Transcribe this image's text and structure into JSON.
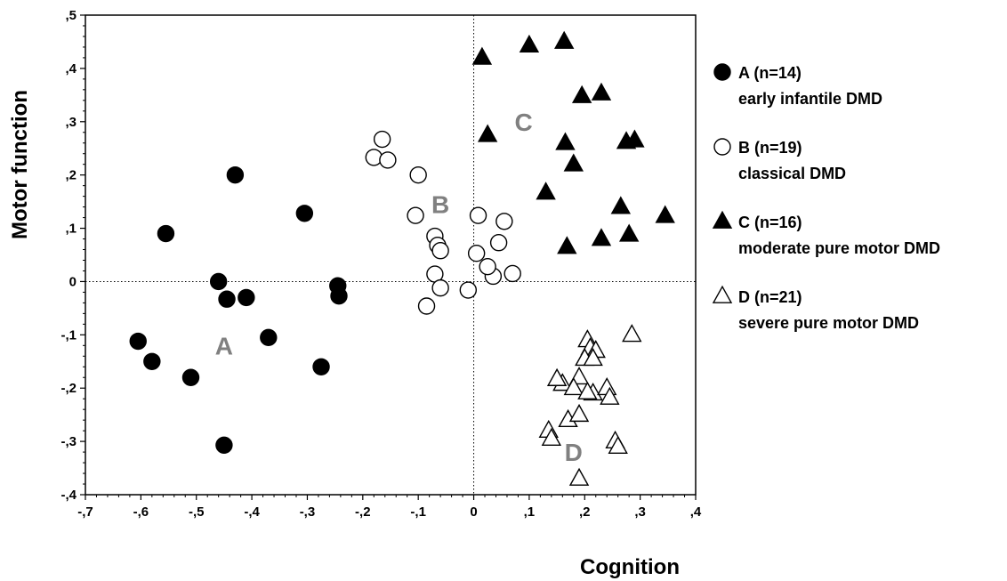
{
  "chart_data": {
    "type": "scatter",
    "title": "",
    "xlabel": "Cognition",
    "ylabel": "Motor function",
    "xlim": [
      -0.7,
      0.4
    ],
    "ylim": [
      -0.4,
      0.5
    ],
    "x_ticks": [
      {
        "value": -0.7,
        "label": "-,7"
      },
      {
        "value": -0.6,
        "label": "-,6"
      },
      {
        "value": -0.5,
        "label": "-,5"
      },
      {
        "value": -0.4,
        "label": "-,4"
      },
      {
        "value": -0.3,
        "label": "-,3"
      },
      {
        "value": -0.2,
        "label": "-,2"
      },
      {
        "value": -0.1,
        "label": "-,1"
      },
      {
        "value": 0.0,
        "label": "0"
      },
      {
        "value": 0.1,
        "label": ",1"
      },
      {
        "value": 0.2,
        "label": ",2"
      },
      {
        "value": 0.3,
        "label": ",3"
      },
      {
        "value": 0.4,
        "label": ",4"
      }
    ],
    "y_ticks": [
      {
        "value": 0.5,
        "label": ",5"
      },
      {
        "value": 0.4,
        "label": ",4"
      },
      {
        "value": 0.3,
        "label": ",3"
      },
      {
        "value": 0.2,
        "label": ",2"
      },
      {
        "value": 0.1,
        "label": ",1"
      },
      {
        "value": 0.0,
        "label": "0"
      },
      {
        "value": -0.1,
        "label": "-,1"
      },
      {
        "value": -0.2,
        "label": "-,2"
      },
      {
        "value": -0.3,
        "label": "-,3"
      },
      {
        "value": -0.4,
        "label": "-,4"
      }
    ],
    "reference_lines": {
      "x": 0,
      "y": 0,
      "style": "dotted"
    },
    "grid": false,
    "legend_position": "right",
    "series": [
      {
        "name": "A (n=14)",
        "description": "early infantile DMD",
        "marker": "filled-circle",
        "cluster_label": "A",
        "cluster_label_pos": [
          -0.45,
          -0.12
        ],
        "points": [
          [
            -0.43,
            0.2
          ],
          [
            -0.555,
            0.09
          ],
          [
            -0.305,
            0.128
          ],
          [
            -0.46,
            0.0
          ],
          [
            -0.445,
            -0.033
          ],
          [
            -0.41,
            -0.03
          ],
          [
            -0.245,
            -0.008
          ],
          [
            -0.243,
            -0.027
          ],
          [
            -0.605,
            -0.112
          ],
          [
            -0.58,
            -0.15
          ],
          [
            -0.37,
            -0.105
          ],
          [
            -0.51,
            -0.18
          ],
          [
            -0.275,
            -0.16
          ],
          [
            -0.45,
            -0.307
          ]
        ]
      },
      {
        "name": "B (n=19)",
        "description": "classical DMD",
        "marker": "open-circle",
        "cluster_label": "B",
        "cluster_label_pos": [
          -0.06,
          0.145
        ],
        "points": [
          [
            -0.165,
            0.267
          ],
          [
            -0.18,
            0.233
          ],
          [
            -0.155,
            0.228
          ],
          [
            -0.1,
            0.2
          ],
          [
            -0.105,
            0.124
          ],
          [
            -0.07,
            0.085
          ],
          [
            -0.065,
            0.068
          ],
          [
            -0.06,
            0.058
          ],
          [
            -0.07,
            0.014
          ],
          [
            -0.06,
            -0.012
          ],
          [
            -0.085,
            -0.046
          ],
          [
            -0.01,
            -0.016
          ],
          [
            0.008,
            0.124
          ],
          [
            0.055,
            0.113
          ],
          [
            0.045,
            0.073
          ],
          [
            0.005,
            0.053
          ],
          [
            0.035,
            0.01
          ],
          [
            0.07,
            0.015
          ],
          [
            0.025,
            0.028
          ]
        ]
      },
      {
        "name": "C (n=16)",
        "description": "moderate pure motor DMD",
        "marker": "filled-triangle",
        "cluster_label": "C",
        "cluster_label_pos": [
          0.09,
          0.3
        ],
        "points": [
          [
            0.015,
            0.42
          ],
          [
            0.1,
            0.443
          ],
          [
            0.163,
            0.45
          ],
          [
            0.195,
            0.348
          ],
          [
            0.23,
            0.353
          ],
          [
            0.025,
            0.275
          ],
          [
            0.165,
            0.26
          ],
          [
            0.18,
            0.22
          ],
          [
            0.275,
            0.262
          ],
          [
            0.29,
            0.265
          ],
          [
            0.13,
            0.167
          ],
          [
            0.265,
            0.14
          ],
          [
            0.345,
            0.123
          ],
          [
            0.168,
            0.065
          ],
          [
            0.23,
            0.08
          ],
          [
            0.28,
            0.088
          ]
        ]
      },
      {
        "name": "D (n=21)",
        "description": "severe pure motor DMD",
        "marker": "open-triangle",
        "cluster_label": "D",
        "cluster_label_pos": [
          0.18,
          -0.32
        ],
        "points": [
          [
            0.205,
            -0.11
          ],
          [
            0.21,
            -0.125
          ],
          [
            0.22,
            -0.13
          ],
          [
            0.285,
            -0.1
          ],
          [
            0.2,
            -0.145
          ],
          [
            0.215,
            -0.145
          ],
          [
            0.16,
            -0.192
          ],
          [
            0.19,
            -0.18
          ],
          [
            0.18,
            -0.2
          ],
          [
            0.215,
            -0.21
          ],
          [
            0.24,
            -0.2
          ],
          [
            0.245,
            -0.218
          ],
          [
            0.205,
            -0.208
          ],
          [
            0.135,
            -0.28
          ],
          [
            0.14,
            -0.295
          ],
          [
            0.17,
            -0.26
          ],
          [
            0.19,
            -0.25
          ],
          [
            0.255,
            -0.3
          ],
          [
            0.26,
            -0.31
          ],
          [
            0.19,
            -0.37
          ],
          [
            0.15,
            -0.183
          ]
        ]
      }
    ]
  }
}
